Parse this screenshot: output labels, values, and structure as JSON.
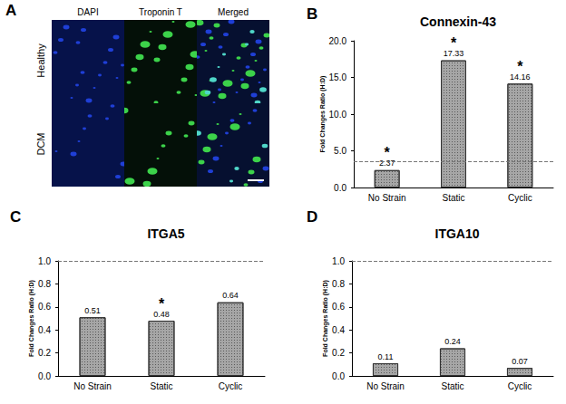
{
  "image_panel": {
    "panel": "A",
    "columns": [
      "DAPI",
      "Troponin T",
      "Merged"
    ],
    "rows": [
      "Healthy",
      "DCM"
    ]
  },
  "chart_data": [
    {
      "panel": "B",
      "type": "bar",
      "title": "Connexin-43",
      "y_label": "Fold Changes Ratio (H:D)",
      "categories": [
        "No Strain",
        "Static",
        "Cyclic"
      ],
      "values": [
        2.37,
        17.33,
        14.16
      ],
      "significance": [
        "*",
        "*",
        "*"
      ],
      "reference_line": 3.5,
      "color": "#a6a6a6",
      "ylim": [
        0,
        20
      ],
      "yticks": [
        {
          "value": 0,
          "label": "0.0"
        },
        {
          "value": 5,
          "label": "5.0"
        },
        {
          "value": 10,
          "label": "10.0"
        },
        {
          "value": 15,
          "label": "15.0"
        },
        {
          "value": 20,
          "label": "20.0"
        }
      ],
      "data_labels": true
    },
    {
      "panel": "C",
      "type": "bar",
      "title": "ITGA5",
      "y_label": "Fold Changes Ratio (H:D)",
      "categories": [
        "No Strain",
        "Static",
        "Cyclic"
      ],
      "values": [
        0.51,
        0.48,
        0.64
      ],
      "significance": [
        null,
        "*",
        null
      ],
      "reference_line": 1.0,
      "color": "#a6a6a6",
      "ylim": [
        0,
        1
      ],
      "yticks": [
        {
          "value": 0,
          "label": "0.0"
        },
        {
          "value": 0.2,
          "label": "0.2"
        },
        {
          "value": 0.4,
          "label": "0.4"
        },
        {
          "value": 0.6,
          "label": "0.6"
        },
        {
          "value": 0.8,
          "label": "0.8"
        },
        {
          "value": 1,
          "label": "1.0"
        }
      ],
      "data_labels": true
    },
    {
      "panel": "D",
      "type": "bar",
      "title": "ITGA10",
      "y_label": "Fold Changes Ratio (H:D)",
      "categories": [
        "No Strain",
        "Static",
        "Cyclic"
      ],
      "values": [
        0.11,
        0.24,
        0.07
      ],
      "significance": [
        null,
        null,
        null
      ],
      "reference_line": 1.0,
      "color": "#a6a6a6",
      "ylim": [
        0,
        1
      ],
      "yticks": [
        {
          "value": 0,
          "label": "0.0"
        },
        {
          "value": 0.2,
          "label": "0.2"
        },
        {
          "value": 0.4,
          "label": "0.4"
        },
        {
          "value": 0.6,
          "label": "0.6"
        },
        {
          "value": 0.8,
          "label": "0.8"
        },
        {
          "value": 1,
          "label": "1.0"
        }
      ],
      "data_labels": true
    }
  ]
}
